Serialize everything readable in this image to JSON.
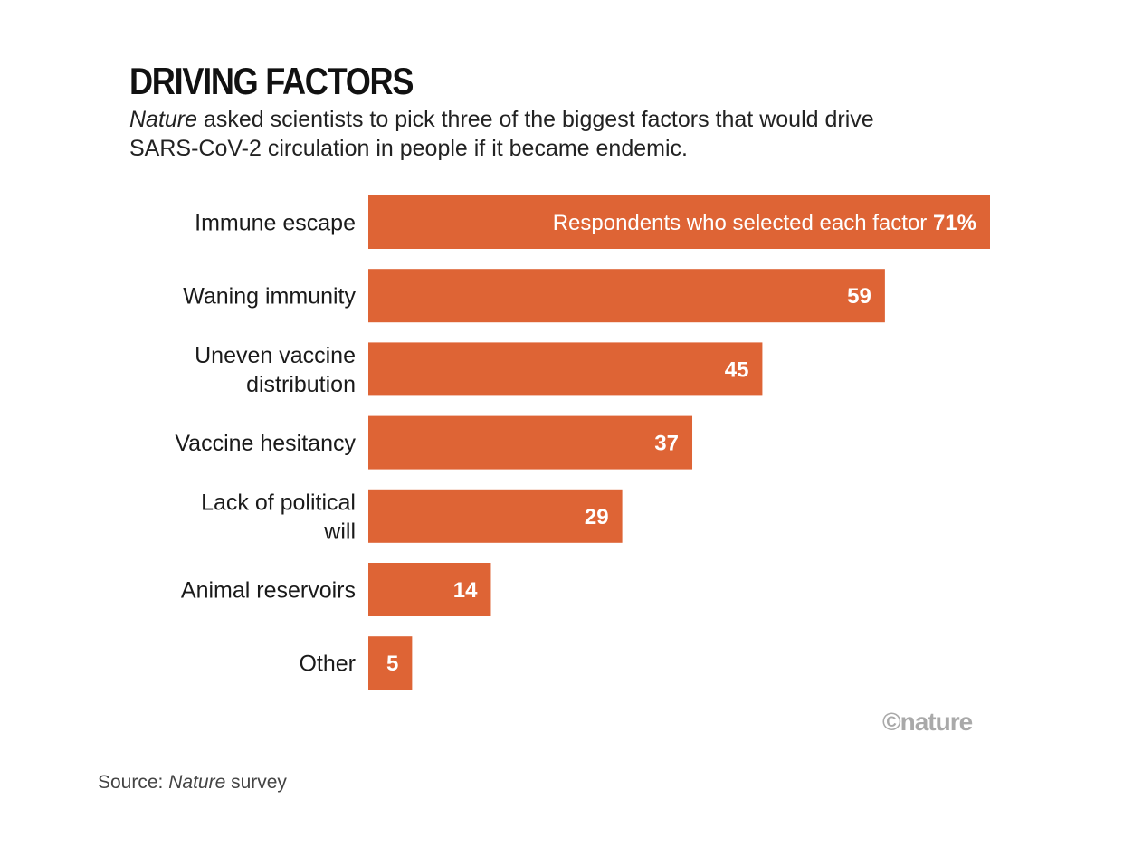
{
  "chart_data": {
    "type": "bar",
    "orientation": "horizontal",
    "title": "DRIVING FACTORS",
    "subtitle_lead": "Nature",
    "subtitle_rest": " asked scientists to pick three of the biggest factors that would drive SARS-CoV-2 circulation in people if it became endemic.",
    "categories": [
      "Immune escape",
      "Waning immunity",
      "Uneven vaccine distribution",
      "Vaccine hesitancy",
      "Lack of political will",
      "Animal reservoirs",
      "Other"
    ],
    "values": [
      71,
      59,
      45,
      37,
      29,
      14,
      5
    ],
    "value_labels": [
      "71%",
      "59",
      "45",
      "37",
      "29",
      "14",
      "5"
    ],
    "series_label": "Respondents who selected each factor",
    "xlim": [
      0,
      71
    ],
    "grid": false,
    "colors": {
      "bar": "#de6435",
      "label": "#ffffff"
    }
  },
  "credit": "©nature",
  "source": {
    "prefix": "Source: ",
    "name": "Nature",
    "suffix": " survey"
  }
}
